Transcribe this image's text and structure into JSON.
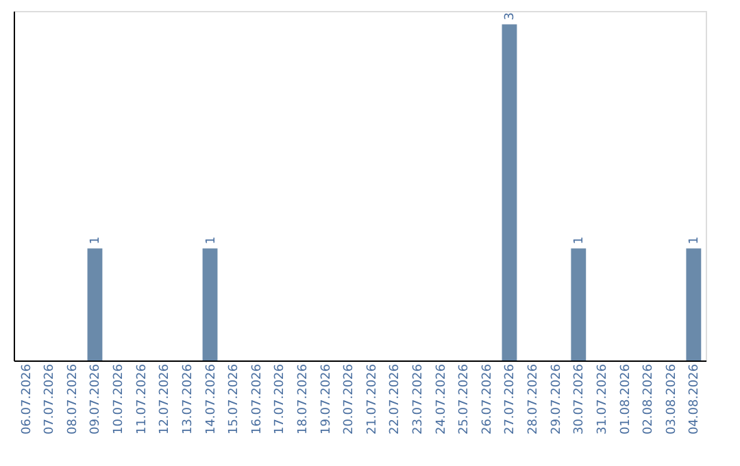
{
  "chart_data": {
    "type": "bar",
    "categories": [
      "06.07.2026",
      "07.07.2026",
      "08.07.2026",
      "09.07.2026",
      "10.07.2026",
      "11.07.2026",
      "12.07.2026",
      "13.07.2026",
      "14.07.2026",
      "15.07.2026",
      "16.07.2026",
      "17.07.2026",
      "18.07.2026",
      "19.07.2026",
      "20.07.2026",
      "21.07.2026",
      "22.07.2026",
      "23.07.2026",
      "24.07.2026",
      "25.07.2026",
      "26.07.2026",
      "27.07.2026",
      "28.07.2026",
      "29.07.2026",
      "30.07.2026",
      "31.07.2026",
      "01.08.2026",
      "02.08.2026",
      "03.08.2026",
      "04.08.2026"
    ],
    "values": [
      0,
      0,
      0,
      1,
      0,
      0,
      0,
      0,
      1,
      0,
      0,
      0,
      0,
      0,
      0,
      0,
      0,
      0,
      0,
      0,
      0,
      3,
      0,
      0,
      1,
      0,
      0,
      0,
      0,
      1
    ],
    "value_labels": [
      null,
      null,
      null,
      "1",
      null,
      null,
      null,
      null,
      "1",
      null,
      null,
      null,
      null,
      null,
      null,
      null,
      null,
      null,
      null,
      null,
      null,
      "3",
      null,
      null,
      "1",
      null,
      null,
      null,
      null,
      "1"
    ],
    "color": "#6a8aaa",
    "grid": false
  }
}
